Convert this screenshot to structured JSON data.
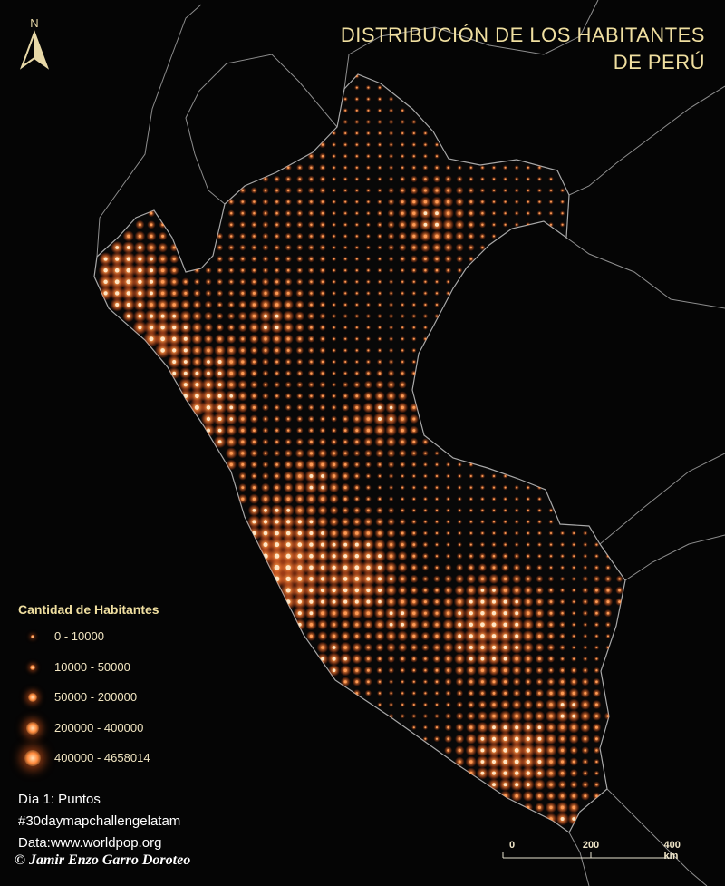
{
  "title": {
    "line1": "DISTRIBUCIÓN DE LOS HABITANTES",
    "line2": "DE PERÚ"
  },
  "north_arrow": {
    "label": "N",
    "icon": "north-arrow-icon"
  },
  "legend": {
    "title": "Cantidad de Habitantes",
    "classes": [
      {
        "label": "0 - 10000",
        "level": 1
      },
      {
        "label": "10000 - 50000",
        "level": 2
      },
      {
        "label": "50000 - 200000",
        "level": 3
      },
      {
        "label": "200000 - 400000",
        "level": 4
      },
      {
        "label": "400000 - 4658014",
        "level": 5
      }
    ]
  },
  "credits": {
    "day": "Día 1: Puntos",
    "hashtag": "#30daymapchallengelatam",
    "data": "Data:www.worldpop.org"
  },
  "author": "© Jamir Enzo Garro Doroteo",
  "scale_bar": {
    "labels": [
      "0",
      "200",
      "400 km"
    ]
  },
  "colors": {
    "background": "#050505",
    "land_outside": "#080808",
    "border": "#9a9a9a",
    "dot": "#ff8a3d",
    "glow": "#ff5a1a",
    "title": "#f0dfa0"
  }
}
